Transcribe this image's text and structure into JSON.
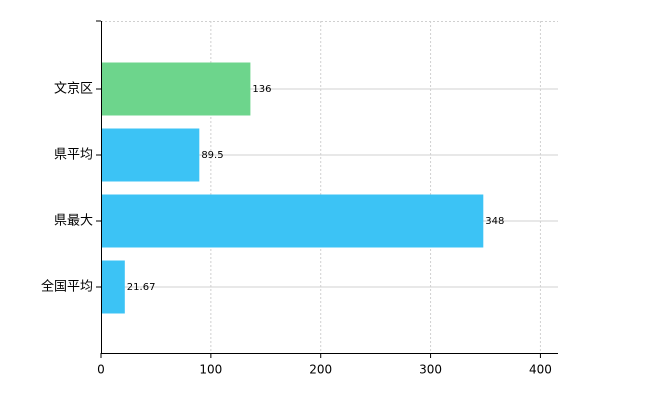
{
  "chart_data": {
    "type": "bar",
    "orientation": "horizontal",
    "categories": [
      "文京区",
      "県平均",
      "県最大",
      "全国平均"
    ],
    "values": [
      136,
      89.5,
      348,
      21.67
    ],
    "colors": [
      "#6dd58c",
      "#3cc3f5",
      "#3cc3f5",
      "#3cc3f5"
    ],
    "xlim": [
      0,
      416
    ],
    "xticks": [
      0,
      100,
      200,
      300,
      400
    ],
    "grid": true
  }
}
